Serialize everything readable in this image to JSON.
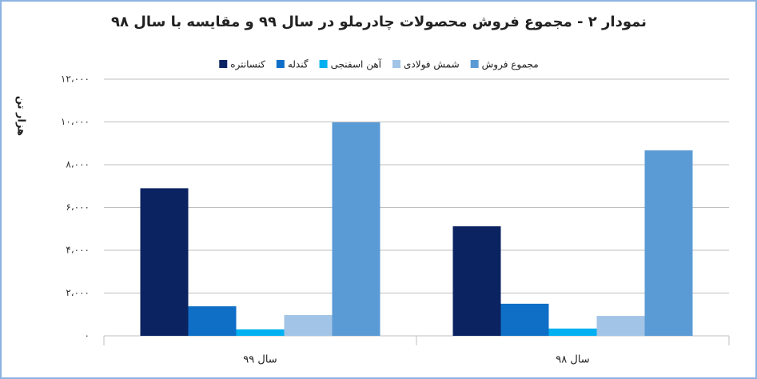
{
  "chart_data": {
    "type": "bar",
    "title": "نمودار ۲ - مجموع فروش محصولات چادرملو در سال ۹۹ و مقایسه با سال ۹۸",
    "y_label": "هزار تن",
    "categories": [
      "سال ۹۹",
      "سال ۹۸"
    ],
    "series": [
      {
        "name": "کنسانتره",
        "color": "#0b2361",
        "values": [
          6900,
          5120
        ]
      },
      {
        "name": "گندله",
        "color": "#0f6fc6",
        "values": [
          1380,
          1500
        ]
      },
      {
        "name": "آهن اسفنجی",
        "color": "#00b0f0",
        "values": [
          300,
          340
        ]
      },
      {
        "name": "شمش فولادی",
        "color": "#a2c4e6",
        "values": [
          970,
          930
        ]
      },
      {
        "name": "مجموع فروش",
        "color": "#5b9bd5",
        "values": [
          9980,
          8670
        ]
      }
    ],
    "ylim": [
      0,
      12000
    ],
    "yticks": [
      {
        "value": 0,
        "label": "۰"
      },
      {
        "value": 2000,
        "label": "۲،۰۰۰"
      },
      {
        "value": 4000,
        "label": "۴،۰۰۰"
      },
      {
        "value": 6000,
        "label": "۶،۰۰۰"
      },
      {
        "value": 8000,
        "label": "۸،۰۰۰"
      },
      {
        "value": 10000,
        "label": "۱۰،۰۰۰"
      },
      {
        "value": 12000,
        "label": "۱۲،۰۰۰"
      }
    ],
    "grid": true
  }
}
